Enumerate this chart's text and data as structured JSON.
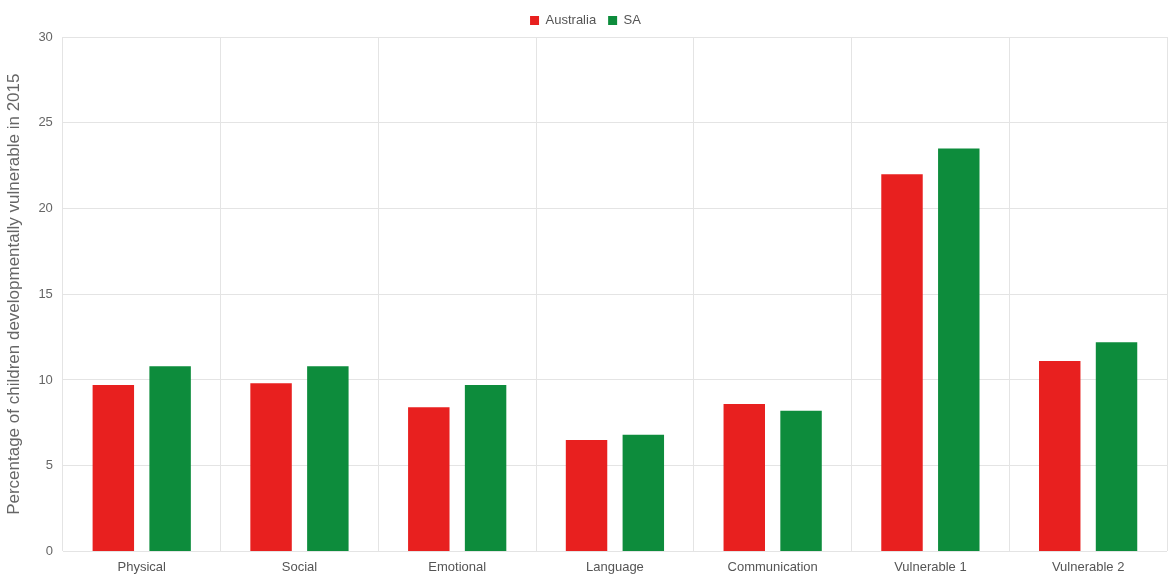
{
  "chart_data": {
    "type": "bar",
    "ylabel": "Percentage of children developmentally vulnerable in 2015",
    "categories": [
      "Physical",
      "Social",
      "Emotional",
      "Language",
      "Communication",
      "Vulnerable 1",
      "Vulnerable 2"
    ],
    "series": [
      {
        "name": "Australia",
        "color": "#e8201f",
        "values": [
          9.7,
          9.8,
          8.4,
          6.5,
          8.6,
          22.0,
          11.1
        ]
      },
      {
        "name": "SA",
        "color": "#0d8c3c",
        "values": [
          10.8,
          10.8,
          9.7,
          6.8,
          8.2,
          23.5,
          12.2
        ]
      }
    ],
    "ylim": [
      0,
      30
    ],
    "yticks": [
      0,
      5,
      10,
      15,
      20,
      25,
      30
    ],
    "grid": true,
    "legend": "top"
  }
}
